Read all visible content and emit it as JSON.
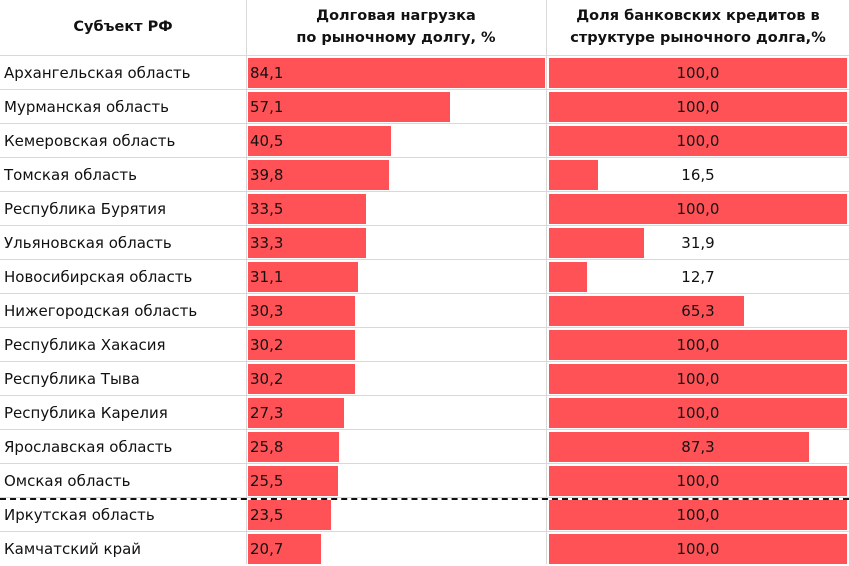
{
  "headers": {
    "region": "Субъект РФ",
    "debt": "Долговая нагрузка\nпо рыночному долгу, %",
    "bank": "Доля банковских кредитов в\nструктуре рыночного долга,%"
  },
  "colors": {
    "bar": "#ff5257",
    "grid": "#d9d9d9"
  },
  "chart_data": {
    "type": "table",
    "columns": [
      "Субъект РФ",
      "Долговая нагрузка по рыночному долгу, %",
      "Доля банковских кредитов в структуре рыночного долга,%"
    ],
    "debt_max": 84.1,
    "bank_max": 100,
    "dashed_separator_after_index": 12,
    "rows": [
      {
        "region": "Архангельская область",
        "debt": 84.1,
        "debt_label": "84,1",
        "bank": 100.0,
        "bank_label": "100,0"
      },
      {
        "region": "Мурманская область",
        "debt": 57.1,
        "debt_label": "57,1",
        "bank": 100.0,
        "bank_label": "100,0"
      },
      {
        "region": "Кемеровская область",
        "debt": 40.5,
        "debt_label": "40,5",
        "bank": 100.0,
        "bank_label": "100,0"
      },
      {
        "region": "Томская область",
        "debt": 39.8,
        "debt_label": "39,8",
        "bank": 16.5,
        "bank_label": "16,5"
      },
      {
        "region": "Республика Бурятия",
        "debt": 33.5,
        "debt_label": "33,5",
        "bank": 100.0,
        "bank_label": "100,0"
      },
      {
        "region": "Ульяновская область",
        "debt": 33.3,
        "debt_label": "33,3",
        "bank": 31.9,
        "bank_label": "31,9"
      },
      {
        "region": "Новосибирская область",
        "debt": 31.1,
        "debt_label": "31,1",
        "bank": 12.7,
        "bank_label": "12,7"
      },
      {
        "region": "Нижегородская область",
        "debt": 30.3,
        "debt_label": "30,3",
        "bank": 65.3,
        "bank_label": "65,3"
      },
      {
        "region": "Республика Хакасия",
        "debt": 30.2,
        "debt_label": "30,2",
        "bank": 100.0,
        "bank_label": "100,0"
      },
      {
        "region": "Республика Тыва",
        "debt": 30.2,
        "debt_label": "30,2",
        "bank": 100.0,
        "bank_label": "100,0"
      },
      {
        "region": "Республика Карелия",
        "debt": 27.3,
        "debt_label": "27,3",
        "bank": 100.0,
        "bank_label": "100,0"
      },
      {
        "region": "Ярославская область",
        "debt": 25.8,
        "debt_label": "25,8",
        "bank": 87.3,
        "bank_label": "87,3"
      },
      {
        "region": "Омская область",
        "debt": 25.5,
        "debt_label": "25,5",
        "bank": 100.0,
        "bank_label": "100,0"
      },
      {
        "region": "Иркутская область",
        "debt": 23.5,
        "debt_label": "23,5",
        "bank": 100.0,
        "bank_label": "100,0"
      },
      {
        "region": "Камчатский край",
        "debt": 20.7,
        "debt_label": "20,7",
        "bank": 100.0,
        "bank_label": "100,0"
      }
    ]
  }
}
